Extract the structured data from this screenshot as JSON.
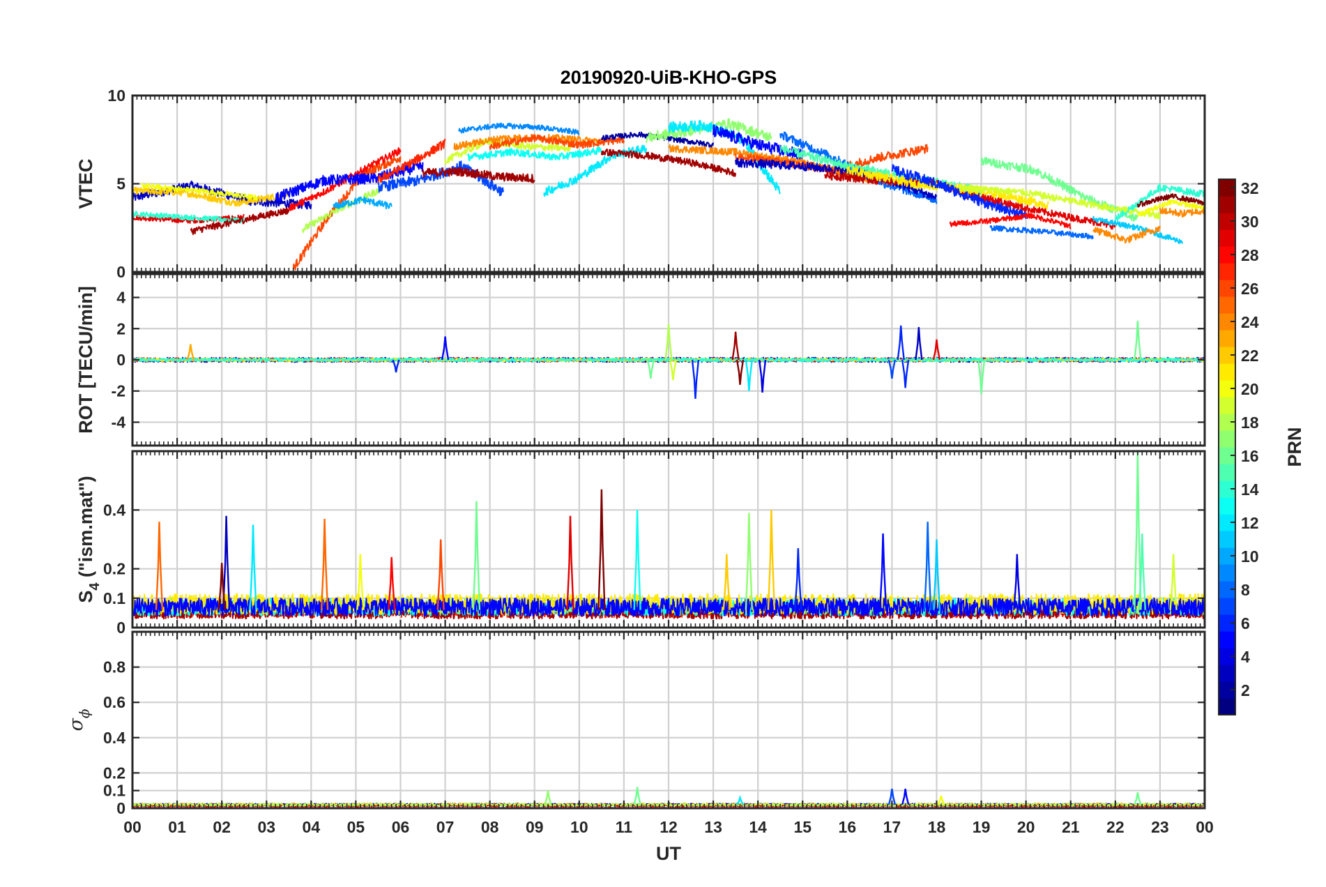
{
  "chart_data": {
    "type": "line",
    "title": "20190920-UiB-KHO-GPS",
    "xlabel": "UT",
    "x_tick_labels": [
      "00",
      "01",
      "02",
      "03",
      "04",
      "05",
      "06",
      "07",
      "08",
      "09",
      "10",
      "11",
      "12",
      "13",
      "14",
      "15",
      "16",
      "17",
      "18",
      "19",
      "20",
      "21",
      "22",
      "23",
      "00"
    ],
    "xlim": [
      0,
      24
    ],
    "grid": true,
    "colorbar": {
      "label": "PRN",
      "colormap": "jet",
      "range": [
        1,
        32
      ],
      "tick_labels": [
        "2",
        "4",
        "6",
        "8",
        "10",
        "12",
        "14",
        "16",
        "18",
        "20",
        "22",
        "24",
        "26",
        "28",
        "30",
        "32"
      ]
    },
    "panels": [
      {
        "id": "vtec",
        "ylabel_main": "VTEC",
        "ylabel_sub": "",
        "ylim": [
          0,
          10
        ],
        "y_ticks": [
          0,
          5,
          10
        ],
        "y_tick_labels": [
          "0",
          "5",
          "10"
        ],
        "tracks": [
          {
            "prn": 3,
            "start": 0.0,
            "end": 4.0,
            "profile": [
              4.2,
              4.9,
              4.0,
              3.8
            ],
            "noise": 0.25
          },
          {
            "prn": 29,
            "start": 0.0,
            "end": 2.5,
            "profile": [
              3.1,
              2.9,
              3.1
            ],
            "noise": 0.15
          },
          {
            "prn": 22,
            "start": 0.0,
            "end": 3.5,
            "profile": [
              4.6,
              4.5,
              3.9,
              4.4
            ],
            "noise": 0.2
          },
          {
            "prn": 20,
            "start": 0.2,
            "end": 2.8,
            "profile": [
              4.9,
              4.6,
              4.2
            ],
            "noise": 0.15
          },
          {
            "prn": 14,
            "start": 0.0,
            "end": 2.5,
            "profile": [
              3.3,
              3.1,
              2.9
            ],
            "noise": 0.15
          },
          {
            "prn": 31,
            "start": 1.3,
            "end": 3.5,
            "profile": [
              2.3,
              2.9,
              3.5
            ],
            "noise": 0.2
          },
          {
            "prn": 26,
            "start": 3.6,
            "end": 6.0,
            "profile": [
              0.2,
              3.2,
              5.6,
              6.5
            ],
            "noise": 0.25
          },
          {
            "prn": 18,
            "start": 3.8,
            "end": 5.5,
            "profile": [
              2.4,
              3.6,
              4.6
            ],
            "noise": 0.2
          },
          {
            "prn": 28,
            "start": 3.5,
            "end": 6.0,
            "profile": [
              3.6,
              4.6,
              5.8,
              6.9
            ],
            "noise": 0.2
          },
          {
            "prn": 5,
            "start": 3.2,
            "end": 6.5,
            "profile": [
              4.2,
              5.2,
              5.3,
              6.0
            ],
            "noise": 0.3
          },
          {
            "prn": 10,
            "start": 4.5,
            "end": 5.8,
            "profile": [
              3.7,
              4.1,
              3.7
            ],
            "noise": 0.2
          },
          {
            "prn": 27,
            "start": 5.5,
            "end": 7.0,
            "profile": [
              5.2,
              6.2,
              7.3
            ],
            "noise": 0.25
          },
          {
            "prn": 7,
            "start": 5.5,
            "end": 8.3,
            "profile": [
              4.8,
              5.2,
              6.0,
              4.5
            ],
            "noise": 0.3
          },
          {
            "prn": 31,
            "start": 6.5,
            "end": 9.0,
            "profile": [
              5.6,
              5.7,
              5.4,
              5.3
            ],
            "noise": 0.25
          },
          {
            "prn": 9,
            "start": 7.3,
            "end": 10.0,
            "profile": [
              8.0,
              8.3,
              8.2,
              7.9
            ],
            "noise": 0.15
          },
          {
            "prn": 19,
            "start": 7.0,
            "end": 9.8,
            "profile": [
              6.3,
              7.4,
              7.1,
              7.0
            ],
            "noise": 0.2
          },
          {
            "prn": 24,
            "start": 7.2,
            "end": 10.5,
            "profile": [
              7.1,
              7.6,
              7.6,
              7.4
            ],
            "noise": 0.2
          },
          {
            "prn": 13,
            "start": 7.5,
            "end": 10.5,
            "profile": [
              6.5,
              6.8,
              6.5,
              6.9
            ],
            "noise": 0.2
          },
          {
            "prn": 12,
            "start": 9.2,
            "end": 11.5,
            "profile": [
              4.5,
              5.3,
              6.6,
              7.0
            ],
            "noise": 0.25
          },
          {
            "prn": 26,
            "start": 8.0,
            "end": 11.0,
            "profile": [
              7.1,
              7.6,
              7.2,
              7.5
            ],
            "noise": 0.2
          },
          {
            "prn": 2,
            "start": 10.5,
            "end": 13.0,
            "profile": [
              7.6,
              7.8,
              7.5,
              7.2
            ],
            "noise": 0.15
          },
          {
            "prn": 17,
            "start": 11.5,
            "end": 14.3,
            "profile": [
              7.6,
              8.0,
              8.4,
              7.6
            ],
            "noise": 0.3
          },
          {
            "prn": 31,
            "start": 10.5,
            "end": 13.5,
            "profile": [
              6.8,
              6.6,
              6.2,
              5.6
            ],
            "noise": 0.2
          },
          {
            "prn": 12,
            "start": 12.0,
            "end": 14.5,
            "profile": [
              8.2,
              8.3,
              7.5,
              4.5
            ],
            "noise": 0.3
          },
          {
            "prn": 5,
            "start": 13.0,
            "end": 15.0,
            "profile": [
              8.0,
              7.2,
              6.6
            ],
            "noise": 0.35
          },
          {
            "prn": 24,
            "start": 12.0,
            "end": 16.5,
            "profile": [
              7.0,
              6.8,
              6.2,
              5.2
            ],
            "noise": 0.2
          },
          {
            "prn": 26,
            "start": 13.5,
            "end": 17.8,
            "profile": [
              6.5,
              6.2,
              5.8,
              6.5,
              7.0
            ],
            "noise": 0.25
          },
          {
            "prn": 8,
            "start": 14.5,
            "end": 18.0,
            "profile": [
              7.8,
              6.5,
              5.0,
              4.1
            ],
            "noise": 0.25
          },
          {
            "prn": 3,
            "start": 13.5,
            "end": 18.0,
            "profile": [
              6.2,
              6.0,
              5.6,
              4.2
            ],
            "noise": 0.25
          },
          {
            "prn": 15,
            "start": 14.5,
            "end": 19.0,
            "profile": [
              7.0,
              6.0,
              5.3,
              4.6
            ],
            "noise": 0.25
          },
          {
            "prn": 30,
            "start": 15.5,
            "end": 19.2,
            "profile": [
              5.5,
              5.2,
              5.0,
              4.0
            ],
            "noise": 0.25
          },
          {
            "prn": 21,
            "start": 16.0,
            "end": 20.5,
            "profile": [
              5.8,
              5.0,
              4.6,
              3.8
            ],
            "noise": 0.25
          },
          {
            "prn": 6,
            "start": 17.0,
            "end": 20.0,
            "profile": [
              5.8,
              5.0,
              4.0,
              3.2
            ],
            "noise": 0.3
          },
          {
            "prn": 28,
            "start": 18.3,
            "end": 21.0,
            "profile": [
              2.7,
              2.9,
              3.2,
              2.6
            ],
            "noise": 0.15
          },
          {
            "prn": 16,
            "start": 19.0,
            "end": 22.5,
            "profile": [
              6.3,
              5.8,
              4.2,
              3.0
            ],
            "noise": 0.25
          },
          {
            "prn": 8,
            "start": 19.2,
            "end": 21.5,
            "profile": [
              2.5,
              2.3,
              2.0
            ],
            "noise": 0.15
          },
          {
            "prn": 19,
            "start": 18.5,
            "end": 23.0,
            "profile": [
              4.8,
              4.5,
              3.8,
              3.2
            ],
            "noise": 0.2
          },
          {
            "prn": 29,
            "start": 19.0,
            "end": 22.0,
            "profile": [
              4.3,
              3.6,
              3.1,
              2.6
            ],
            "noise": 0.2
          },
          {
            "prn": 11,
            "start": 21.5,
            "end": 23.5,
            "profile": [
              3.0,
              2.5,
              1.7
            ],
            "noise": 0.15
          },
          {
            "prn": 24,
            "start": 21.5,
            "end": 23.0,
            "profile": [
              2.4,
              1.8,
              2.5
            ],
            "noise": 0.2
          },
          {
            "prn": 14,
            "start": 22.0,
            "end": 24.0,
            "profile": [
              3.0,
              4.8,
              4.4
            ],
            "noise": 0.2
          },
          {
            "prn": 32,
            "start": 22.5,
            "end": 24.0,
            "profile": [
              3.8,
              4.3,
              3.9
            ],
            "noise": 0.15
          },
          {
            "prn": 20,
            "start": 22.5,
            "end": 24.0,
            "profile": [
              3.2,
              4.0,
              3.6
            ],
            "noise": 0.15
          },
          {
            "prn": 24,
            "start": 23.0,
            "end": 24.0,
            "profile": [
              3.5,
              3.3,
              3.5
            ],
            "noise": 0.2
          }
        ]
      },
      {
        "id": "rot",
        "ylabel_main": "ROT [TECU/min]",
        "ylabel_sub": "",
        "ylim": [
          -5.5,
          5.5
        ],
        "y_ticks": [
          -4,
          -2,
          0,
          2,
          4
        ],
        "y_tick_labels": [
          "-4",
          "-2",
          "0",
          "2",
          "4"
        ],
        "tracks": [
          {
            "prn": 3,
            "start": 0.0,
            "end": 24.0,
            "profile": [
              0.0
            ],
            "noise": 0.15
          },
          {
            "prn": 28,
            "start": 0.0,
            "end": 24.0,
            "profile": [
              0.0
            ],
            "noise": 0.12
          },
          {
            "prn": 20,
            "start": 0.0,
            "end": 24.0,
            "profile": [
              0.0
            ],
            "noise": 0.1
          },
          {
            "prn": 14,
            "start": 0.0,
            "end": 24.0,
            "profile": [
              0.0
            ],
            "noise": 0.1
          }
        ],
        "spikes": [
          {
            "t": 11.6,
            "v": -1.2,
            "prn": 16
          },
          {
            "t": 12.0,
            "v": 2.3,
            "prn": 18
          },
          {
            "t": 12.1,
            "v": -1.3,
            "prn": 19
          },
          {
            "t": 12.6,
            "v": -2.5,
            "prn": 6
          },
          {
            "t": 13.5,
            "v": 1.8,
            "prn": 31
          },
          {
            "t": 13.6,
            "v": -1.6,
            "prn": 32
          },
          {
            "t": 13.8,
            "v": -2.0,
            "prn": 12
          },
          {
            "t": 14.1,
            "v": -2.1,
            "prn": 4
          },
          {
            "t": 17.0,
            "v": -1.2,
            "prn": 7
          },
          {
            "t": 17.2,
            "v": 2.2,
            "prn": 6
          },
          {
            "t": 17.3,
            "v": -1.8,
            "prn": 6
          },
          {
            "t": 17.6,
            "v": 2.1,
            "prn": 3
          },
          {
            "t": 18.0,
            "v": 1.3,
            "prn": 29
          },
          {
            "t": 19.0,
            "v": -2.2,
            "prn": 16
          },
          {
            "t": 22.5,
            "v": 2.5,
            "prn": 16
          },
          {
            "t": 7.0,
            "v": 1.5,
            "prn": 5
          },
          {
            "t": 5.9,
            "v": -0.8,
            "prn": 6
          },
          {
            "t": 1.3,
            "v": 1.0,
            "prn": 23
          }
        ]
      },
      {
        "id": "s4",
        "ylabel_main": "S",
        "ylabel_sub": "4",
        "ylabel_rest": " (\"ism.mat\")",
        "ylim": [
          0,
          0.6
        ],
        "y_ticks": [
          0,
          0.1,
          0.2,
          0.4
        ],
        "y_tick_labels": [
          "0",
          "0.1",
          "0.2",
          "0.4"
        ],
        "tracks": [
          {
            "prn": 27,
            "start": 0.0,
            "end": 24.0,
            "profile": [
              0.06
            ],
            "noise": 0.025
          },
          {
            "prn": 31,
            "start": 0.0,
            "end": 24.0,
            "profile": [
              0.05
            ],
            "noise": 0.02
          },
          {
            "prn": 13,
            "start": 0.0,
            "end": 24.0,
            "profile": [
              0.07
            ],
            "noise": 0.03
          },
          {
            "prn": 21,
            "start": 0.0,
            "end": 24.0,
            "profile": [
              0.08
            ],
            "noise": 0.035
          },
          {
            "prn": 5,
            "start": 0.0,
            "end": 24.0,
            "profile": [
              0.07
            ],
            "noise": 0.03
          }
        ],
        "spikes": [
          {
            "t": 0.6,
            "v": 0.36,
            "prn": 25
          },
          {
            "t": 2.1,
            "v": 0.38,
            "prn": 3
          },
          {
            "t": 2.0,
            "v": 0.22,
            "prn": 32
          },
          {
            "t": 2.7,
            "v": 0.35,
            "prn": 12
          },
          {
            "t": 4.3,
            "v": 0.37,
            "prn": 25
          },
          {
            "t": 5.1,
            "v": 0.25,
            "prn": 20
          },
          {
            "t": 5.8,
            "v": 0.24,
            "prn": 28
          },
          {
            "t": 6.9,
            "v": 0.3,
            "prn": 26
          },
          {
            "t": 7.7,
            "v": 0.43,
            "prn": 16
          },
          {
            "t": 9.8,
            "v": 0.38,
            "prn": 29
          },
          {
            "t": 10.5,
            "v": 0.47,
            "prn": 32
          },
          {
            "t": 11.3,
            "v": 0.4,
            "prn": 13
          },
          {
            "t": 13.3,
            "v": 0.25,
            "prn": 22
          },
          {
            "t": 13.8,
            "v": 0.39,
            "prn": 17
          },
          {
            "t": 14.3,
            "v": 0.4,
            "prn": 22
          },
          {
            "t": 14.9,
            "v": 0.27,
            "prn": 6
          },
          {
            "t": 16.8,
            "v": 0.32,
            "prn": 5
          },
          {
            "t": 17.8,
            "v": 0.36,
            "prn": 8
          },
          {
            "t": 18.0,
            "v": 0.3,
            "prn": 11
          },
          {
            "t": 19.8,
            "v": 0.25,
            "prn": 4
          },
          {
            "t": 22.5,
            "v": 0.6,
            "prn": 16
          },
          {
            "t": 22.6,
            "v": 0.32,
            "prn": 15
          },
          {
            "t": 23.3,
            "v": 0.25,
            "prn": 19
          }
        ]
      },
      {
        "id": "sigma",
        "ylabel_main": "σ",
        "ylabel_sub": "ϕ",
        "ylim": [
          0,
          1.0
        ],
        "y_ticks": [
          0,
          0.1,
          0.2,
          0.4,
          0.6,
          0.8
        ],
        "y_tick_labels": [
          "0",
          "0.1",
          "0.2",
          "0.4",
          "0.6",
          "0.8"
        ],
        "tracks": [
          {
            "prn": 24,
            "start": 0.0,
            "end": 24.0,
            "profile": [
              0.02
            ],
            "noise": 0.008
          },
          {
            "prn": 3,
            "start": 0.0,
            "end": 24.0,
            "profile": [
              0.02
            ],
            "noise": 0.006
          },
          {
            "prn": 28,
            "start": 0.0,
            "end": 24.0,
            "profile": [
              0.015
            ],
            "noise": 0.006
          },
          {
            "prn": 18,
            "start": 0.0,
            "end": 24.0,
            "profile": [
              0.02
            ],
            "noise": 0.006
          }
        ],
        "spikes": [
          {
            "t": 9.3,
            "v": 0.1,
            "prn": 17
          },
          {
            "t": 11.3,
            "v": 0.12,
            "prn": 16
          },
          {
            "t": 17.0,
            "v": 0.11,
            "prn": 7
          },
          {
            "t": 17.3,
            "v": 0.11,
            "prn": 5
          },
          {
            "t": 22.5,
            "v": 0.09,
            "prn": 16
          },
          {
            "t": 13.6,
            "v": 0.06,
            "prn": 12
          },
          {
            "t": 18.1,
            "v": 0.07,
            "prn": 20
          }
        ]
      }
    ]
  }
}
